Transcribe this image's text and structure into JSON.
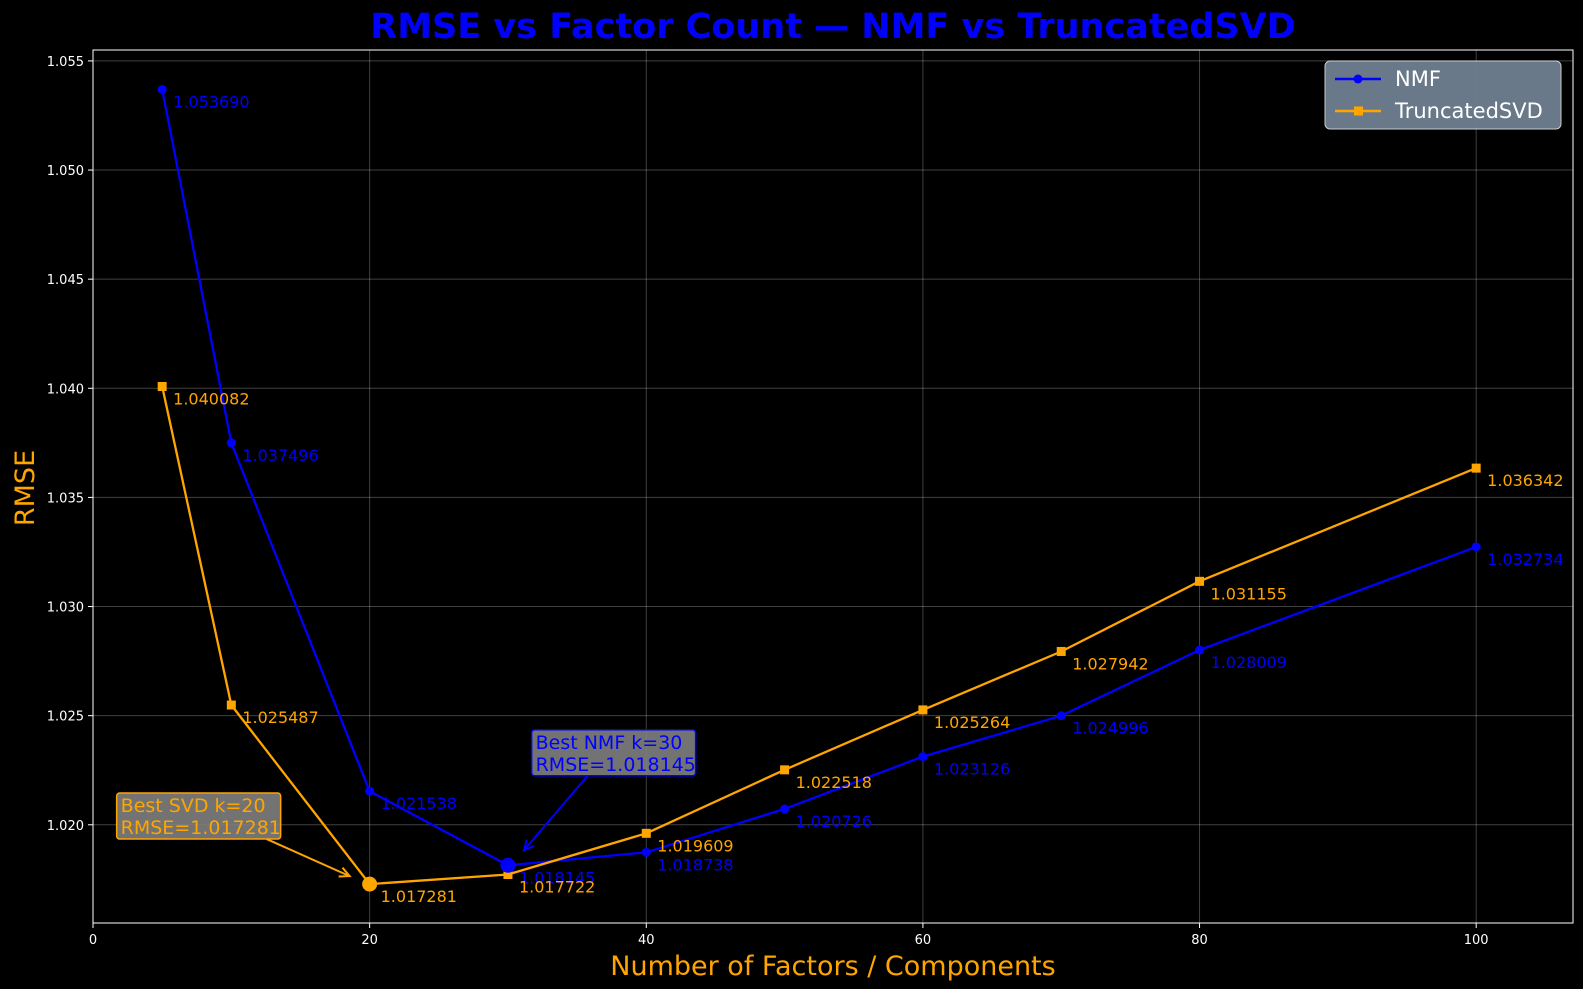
{
  "chart_data": {
    "type": "line",
    "title": "RMSE vs Factor Count — NMF vs TruncatedSVD",
    "xlabel": "Number of Factors / Components",
    "ylabel": "RMSE",
    "xlim": [
      0,
      107
    ],
    "ylim": [
      1.0155,
      1.0555
    ],
    "xticks": [
      0,
      20,
      40,
      60,
      80,
      100
    ],
    "yticks": [
      1.02,
      1.025,
      1.03,
      1.035,
      1.04,
      1.045,
      1.05,
      1.055
    ],
    "ytick_labels": [
      "1.020",
      "1.025",
      "1.030",
      "1.035",
      "1.040",
      "1.045",
      "1.050",
      "1.055"
    ],
    "grid": true,
    "legend_position": "upper right",
    "series": [
      {
        "name": "NMF",
        "color": "#0000ff",
        "marker": "circle",
        "x": [
          5,
          10,
          20,
          30,
          40,
          50,
          60,
          70,
          80,
          100
        ],
        "y": [
          1.05369,
          1.037496,
          1.021538,
          1.018145,
          1.018738,
          1.020726,
          1.023126,
          1.024996,
          1.028009,
          1.032734
        ],
        "labels": [
          "1.053690",
          "1.037496",
          "1.021538",
          "1.018145",
          "1.018738",
          "1.020726",
          "1.023126",
          "1.024996",
          "1.028009",
          "1.032734"
        ]
      },
      {
        "name": "TruncatedSVD",
        "color": "#ffa500",
        "marker": "square",
        "x": [
          5,
          10,
          20,
          30,
          40,
          50,
          60,
          70,
          80,
          100
        ],
        "y": [
          1.040082,
          1.025487,
          1.017281,
          1.017722,
          1.019609,
          1.022518,
          1.025264,
          1.027942,
          1.031155,
          1.036342
        ],
        "labels": [
          "1.040082",
          "1.025487",
          "1.017281",
          "1.017722",
          "1.019609",
          "1.022518",
          "1.025264",
          "1.027942",
          "1.031155",
          "1.036342"
        ]
      }
    ],
    "annotations": [
      {
        "series": "NMF",
        "lines": [
          "Best NMF k=30",
          "RMSE=1.018145"
        ],
        "point": [
          30,
          1.018145
        ],
        "text_at": [
          32,
          1.0233
        ],
        "color": "#0000ff"
      },
      {
        "series": "TruncatedSVD",
        "lines": [
          "Best SVD k=20",
          "RMSE=1.017281"
        ],
        "point": [
          20,
          1.017281
        ],
        "text_at": [
          2,
          1.0204
        ],
        "color": "#ffa500"
      }
    ]
  }
}
